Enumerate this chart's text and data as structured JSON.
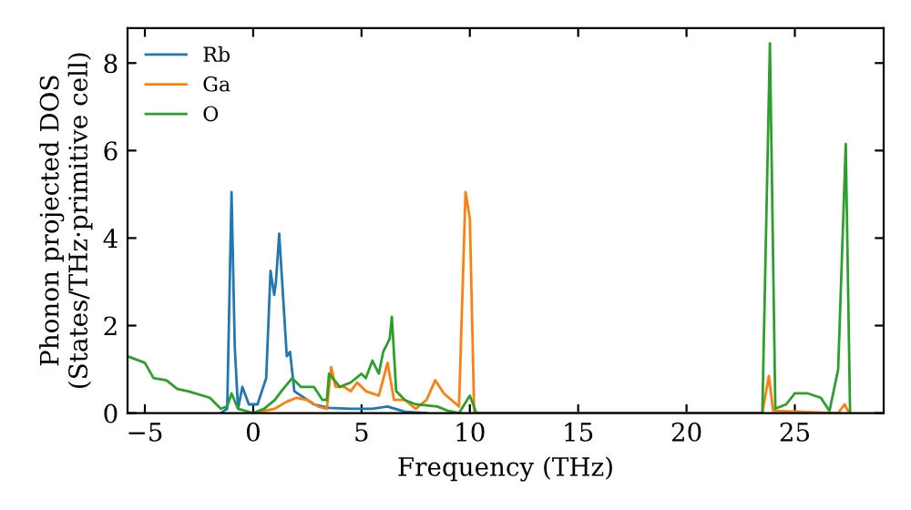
{
  "chart_data": {
    "type": "line",
    "xlabel": "Frequency (THz)",
    "ylabel": "Phonon projected DOS\n(States/THz·primitive cell)",
    "xlim": [
      -5.8,
      29.1
    ],
    "ylim": [
      0,
      8.8
    ],
    "xticks": [
      {
        "value": -5,
        "label": "−5"
      },
      0,
      5,
      10,
      15,
      20,
      25
    ],
    "yticks": [
      0,
      2,
      4,
      6,
      8
    ],
    "legend": "top left",
    "grid": false,
    "series": [
      {
        "name": "Rb",
        "color": "#1f77b4",
        "x": [
          -1.5,
          -1.2,
          -1.0,
          -0.85,
          -0.7,
          -0.5,
          -0.2,
          0.2,
          0.6,
          0.8,
          0.97,
          1.05,
          1.2,
          1.4,
          1.55,
          1.7,
          1.9,
          2.2,
          2.8,
          3.5,
          4.5,
          5.5,
          6.2,
          7,
          8
        ],
        "values": [
          0,
          0.1,
          5.05,
          1.5,
          0.1,
          0.6,
          0.2,
          0.2,
          0.8,
          3.25,
          2.7,
          3.0,
          4.1,
          2.5,
          1.3,
          1.4,
          0.5,
          0.4,
          0.2,
          0.12,
          0.1,
          0.1,
          0.15,
          0.03,
          0
        ]
      },
      {
        "name": "Ga",
        "color": "#ff7f0e",
        "x": [
          0,
          0.5,
          1,
          1.5,
          2,
          2.5,
          3,
          3.4,
          3.6,
          3.8,
          4.2,
          4.5,
          4.8,
          5.2,
          5.8,
          6.2,
          6.5,
          7,
          7.5,
          8.0,
          8.4,
          8.8,
          9.5,
          9.8,
          10.0,
          10.2,
          23.5,
          23.8,
          24.0,
          27,
          27.3,
          27.5
        ],
        "values": [
          0,
          0.05,
          0.1,
          0.25,
          0.35,
          0.3,
          0.15,
          0.1,
          1.05,
          0.6,
          0.6,
          0.5,
          0.7,
          0.5,
          0.4,
          1.15,
          0.3,
          0.3,
          0.1,
          0.3,
          0.75,
          0.45,
          0.15,
          5.05,
          4.45,
          0,
          0,
          0.85,
          0.05,
          0,
          0.2,
          0
        ]
      },
      {
        "name": "O",
        "color": "#2ca02c",
        "x": [
          -5.8,
          -5,
          -4.6,
          -4,
          -3.5,
          -3,
          -2,
          -1.5,
          -1.2,
          -1,
          -0.7,
          0,
          0.5,
          1,
          1.3,
          1.8,
          2.2,
          2.8,
          3.2,
          3.4,
          3.5,
          4,
          4.5,
          5,
          5.2,
          5.5,
          5.8,
          6.0,
          6.3,
          6.4,
          6.6,
          7,
          7.5,
          8.5,
          9,
          9.5,
          10,
          10.3,
          23.5,
          23.85,
          24.1,
          24.6,
          25,
          25.6,
          26.2,
          26.6,
          27,
          27.35,
          27.55
        ],
        "values": [
          1.3,
          1.15,
          0.8,
          0.75,
          0.55,
          0.5,
          0.35,
          0.1,
          0.15,
          0.45,
          0.1,
          0,
          0.1,
          0.3,
          0.5,
          0.8,
          0.6,
          0.6,
          0.3,
          0.3,
          0.9,
          0.6,
          0.7,
          0.9,
          0.8,
          1.2,
          0.9,
          1.4,
          1.7,
          2.2,
          0.5,
          0.3,
          0.2,
          0.15,
          0.05,
          0,
          0.4,
          0,
          0,
          8.45,
          0.1,
          0.2,
          0.45,
          0.45,
          0.35,
          0.05,
          1.0,
          6.15,
          0
        ]
      }
    ]
  }
}
